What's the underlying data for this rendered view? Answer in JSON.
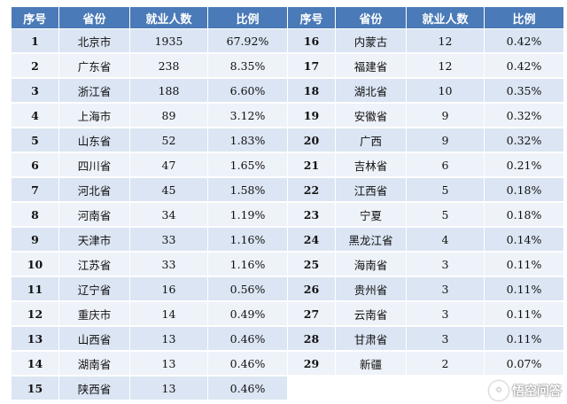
{
  "table": {
    "headers": [
      "序号",
      "省份",
      "就业人数",
      "比例",
      "序号",
      "省份",
      "就业人数",
      "比例"
    ],
    "rows": [
      {
        "left": {
          "rank": "1",
          "province": "北京市",
          "count": "1935",
          "ratio": "67.92%"
        },
        "right": {
          "rank": "16",
          "province": "内蒙古",
          "count": "12",
          "ratio": "0.42%"
        }
      },
      {
        "left": {
          "rank": "2",
          "province": "广东省",
          "count": "238",
          "ratio": "8.35%"
        },
        "right": {
          "rank": "17",
          "province": "福建省",
          "count": "12",
          "ratio": "0.42%"
        }
      },
      {
        "left": {
          "rank": "3",
          "province": "浙江省",
          "count": "188",
          "ratio": "6.60%"
        },
        "right": {
          "rank": "18",
          "province": "湖北省",
          "count": "10",
          "ratio": "0.35%"
        }
      },
      {
        "left": {
          "rank": "4",
          "province": "上海市",
          "count": "89",
          "ratio": "3.12%"
        },
        "right": {
          "rank": "19",
          "province": "安徽省",
          "count": "9",
          "ratio": "0.32%"
        }
      },
      {
        "left": {
          "rank": "5",
          "province": "山东省",
          "count": "52",
          "ratio": "1.83%"
        },
        "right": {
          "rank": "20",
          "province": "广西",
          "count": "9",
          "ratio": "0.32%"
        }
      },
      {
        "left": {
          "rank": "6",
          "province": "四川省",
          "count": "47",
          "ratio": "1.65%"
        },
        "right": {
          "rank": "21",
          "province": "吉林省",
          "count": "6",
          "ratio": "0.21%"
        }
      },
      {
        "left": {
          "rank": "7",
          "province": "河北省",
          "count": "45",
          "ratio": "1.58%"
        },
        "right": {
          "rank": "22",
          "province": "江西省",
          "count": "5",
          "ratio": "0.18%"
        }
      },
      {
        "left": {
          "rank": "8",
          "province": "河南省",
          "count": "34",
          "ratio": "1.19%"
        },
        "right": {
          "rank": "23",
          "province": "宁夏",
          "count": "5",
          "ratio": "0.18%"
        }
      },
      {
        "left": {
          "rank": "9",
          "province": "天津市",
          "count": "33",
          "ratio": "1.16%"
        },
        "right": {
          "rank": "24",
          "province": "黑龙江省",
          "count": "4",
          "ratio": "0.14%"
        }
      },
      {
        "left": {
          "rank": "10",
          "province": "江苏省",
          "count": "33",
          "ratio": "1.16%"
        },
        "right": {
          "rank": "25",
          "province": "海南省",
          "count": "3",
          "ratio": "0.11%"
        }
      },
      {
        "left": {
          "rank": "11",
          "province": "辽宁省",
          "count": "16",
          "ratio": "0.56%"
        },
        "right": {
          "rank": "26",
          "province": "贵州省",
          "count": "3",
          "ratio": "0.11%"
        }
      },
      {
        "left": {
          "rank": "12",
          "province": "重庆市",
          "count": "14",
          "ratio": "0.49%"
        },
        "right": {
          "rank": "27",
          "province": "云南省",
          "count": "3",
          "ratio": "0.11%"
        }
      },
      {
        "left": {
          "rank": "13",
          "province": "山西省",
          "count": "13",
          "ratio": "0.46%"
        },
        "right": {
          "rank": "28",
          "province": "甘肃省",
          "count": "3",
          "ratio": "0.11%"
        }
      },
      {
        "left": {
          "rank": "14",
          "province": "湖南省",
          "count": "13",
          "ratio": "0.46%"
        },
        "right": {
          "rank": "29",
          "province": "新疆",
          "count": "2",
          "ratio": "0.07%"
        }
      },
      {
        "left": {
          "rank": "15",
          "province": "陕西省",
          "count": "13",
          "ratio": "0.46%"
        },
        "right": null
      }
    ]
  },
  "watermark": {
    "text": "悟空问答",
    "icon": "wukong-logo-icon"
  },
  "colors": {
    "header_bg": "#4a7ab7",
    "row_odd": "#dbe5f3",
    "row_even": "#eef2f9"
  }
}
